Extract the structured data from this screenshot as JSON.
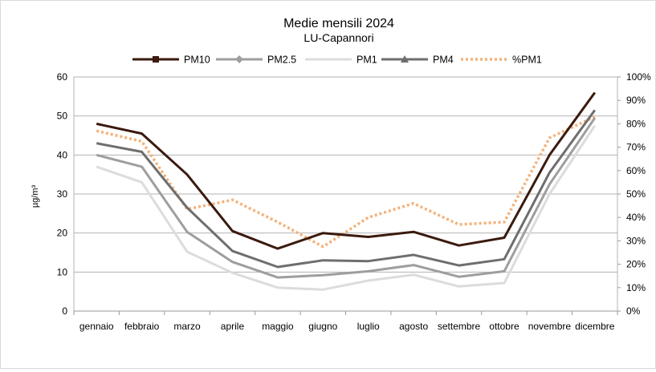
{
  "chart_data": {
    "type": "line",
    "title": "Medie mensili 2024",
    "subtitle": "LU-Capannori",
    "ylabel": "µg/m³",
    "ylim": [
      0,
      60
    ],
    "y2lim": [
      0,
      100
    ],
    "yticks": [
      "0",
      "10",
      "20",
      "30",
      "40",
      "50",
      "60"
    ],
    "y2ticks": [
      "0%",
      "10%",
      "20%",
      "30%",
      "40%",
      "50%",
      "60%",
      "70%",
      "80%",
      "90%",
      "100%"
    ],
    "categories": [
      "gennaio",
      "febbraio",
      "marzo",
      "aprile",
      "maggio",
      "giugno",
      "luglio",
      "agosto",
      "settembre",
      "ottobre",
      "novembre",
      "dicembre"
    ],
    "grid": true,
    "legend_position": "top",
    "series": [
      {
        "name": "PM10",
        "axis": "left",
        "color": "#3b1a0e",
        "values": [
          48,
          45.5,
          35,
          20.5,
          16,
          20,
          19,
          20.3,
          16.8,
          18.8,
          40,
          56
        ]
      },
      {
        "name": "PM2.5",
        "axis": "left",
        "color": "#9e9e9e",
        "values": [
          40,
          37,
          20.3,
          12.6,
          8.6,
          9.2,
          10.2,
          11.8,
          8.8,
          10.2,
          32.5,
          49.5
        ]
      },
      {
        "name": "PM1",
        "axis": "left",
        "color": "#dcdcdc",
        "values": [
          37,
          33,
          15.2,
          9.8,
          6,
          5.5,
          7.8,
          9.3,
          6.3,
          7.2,
          30,
          47.5
        ]
      },
      {
        "name": "PM4",
        "axis": "left",
        "color": "#6e6e6e",
        "values": [
          43,
          40.8,
          26.5,
          15.4,
          11.3,
          13,
          12.8,
          14.4,
          11.7,
          13.3,
          35.5,
          51.5
        ]
      },
      {
        "name": "%PM1",
        "axis": "right",
        "color": "#f4b27a",
        "values": [
          77,
          72.5,
          43.5,
          47.5,
          38,
          27.5,
          40,
          46,
          37,
          38,
          74,
          83
        ]
      }
    ]
  }
}
